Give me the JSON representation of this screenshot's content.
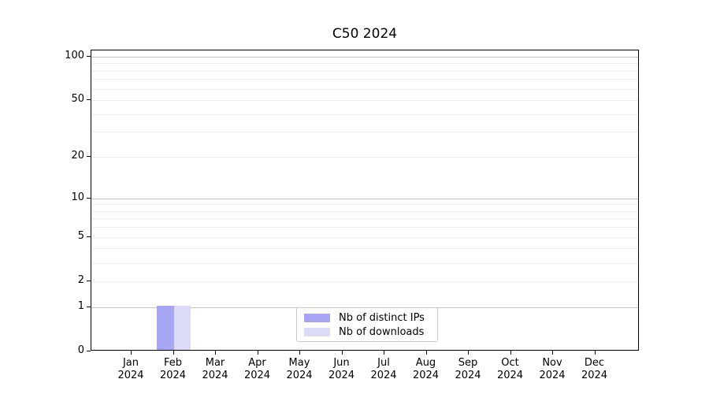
{
  "chart_data": {
    "type": "bar",
    "title": "C50 2024",
    "categories": [
      "Jan 2024",
      "Feb 2024",
      "Mar 2024",
      "Apr 2024",
      "May 2024",
      "Jun 2024",
      "Jul 2024",
      "Aug 2024",
      "Sep 2024",
      "Oct 2024",
      "Nov 2024",
      "Dec 2024"
    ],
    "series": [
      {
        "name": "Nb of distinct IPs",
        "color": "#a6a6f5",
        "values": [
          0,
          1,
          0,
          0,
          0,
          0,
          0,
          0,
          0,
          0,
          0,
          0
        ]
      },
      {
        "name": "Nb of downloads",
        "color": "#dbdbf8",
        "values": [
          0,
          1,
          0,
          0,
          0,
          0,
          0,
          0,
          0,
          0,
          0,
          0
        ]
      }
    ],
    "xlabel": "",
    "ylabel": "",
    "yscale": "log1p",
    "ylim": [
      0,
      110
    ],
    "ytick_values": [
      100,
      50,
      20,
      10,
      5,
      2,
      1,
      0
    ],
    "major_grid_values": [
      1,
      10,
      100
    ],
    "minor_grid_values": [
      2,
      3,
      4,
      5,
      6,
      7,
      8,
      9,
      20,
      30,
      40,
      50,
      60,
      70,
      80,
      90
    ],
    "grid": "both",
    "legend_position": "lower center",
    "bar_layout": "grouped"
  },
  "axes": {
    "y": {
      "tick_labels": [
        "100",
        "50",
        "20",
        "10",
        "5",
        "2",
        "1",
        "0"
      ]
    },
    "x": {
      "categories": [
        {
          "month": "Jan",
          "year": "2024"
        },
        {
          "month": "Feb",
          "year": "2024"
        },
        {
          "month": "Mar",
          "year": "2024"
        },
        {
          "month": "Apr",
          "year": "2024"
        },
        {
          "month": "May",
          "year": "2024"
        },
        {
          "month": "Jun",
          "year": "2024"
        },
        {
          "month": "Jul",
          "year": "2024"
        },
        {
          "month": "Aug",
          "year": "2024"
        },
        {
          "month": "Sep",
          "year": "2024"
        },
        {
          "month": "Oct",
          "year": "2024"
        },
        {
          "month": "Nov",
          "year": "2024"
        },
        {
          "month": "Dec",
          "year": "2024"
        }
      ]
    }
  },
  "legend": {
    "items": [
      {
        "label": "Nb of distinct IPs",
        "color": "#a6a6f5"
      },
      {
        "label": "Nb of downloads",
        "color": "#dbdbf8"
      }
    ]
  },
  "colors": {
    "grid_major": "#c3c3c3",
    "grid_minor": "#ededed",
    "axis": "#000000",
    "background": "#ffffff",
    "text": "#000000"
  }
}
